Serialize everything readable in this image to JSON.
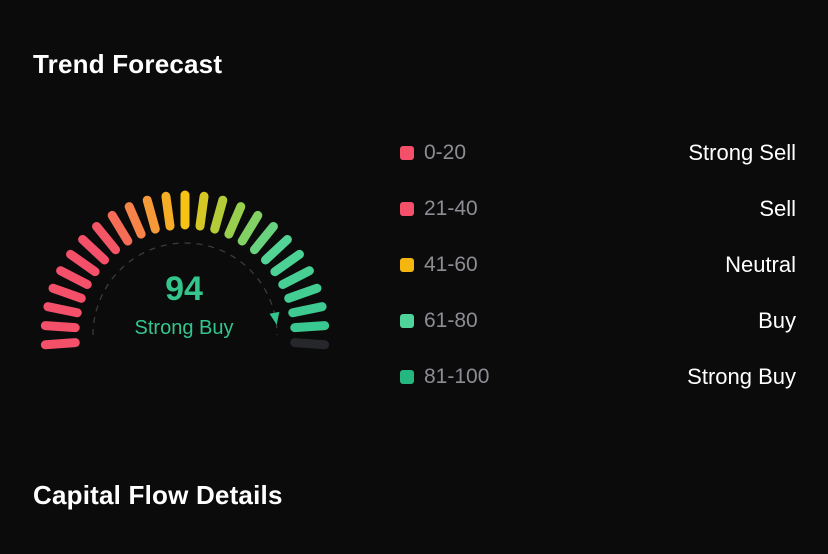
{
  "trend_forecast": {
    "title": "Trend Forecast",
    "gauge": {
      "score": 94,
      "max": 100,
      "label": "Strong Buy",
      "score_color": "#34c58d",
      "track_color": "#26272b"
    },
    "legend": [
      {
        "range": "0-20",
        "signal": "Strong Sell",
        "color": "#f4506a"
      },
      {
        "range": "21-40",
        "signal": "Sell",
        "color": "#f4506a"
      },
      {
        "range": "41-60",
        "signal": "Neutral",
        "color": "#f5b70f"
      },
      {
        "range": "61-80",
        "signal": "Buy",
        "color": "#4fd39b"
      },
      {
        "range": "81-100",
        "signal": "Strong Buy",
        "color": "#24b77f"
      }
    ]
  },
  "capital_flow": {
    "title": "Capital Flow Details"
  }
}
